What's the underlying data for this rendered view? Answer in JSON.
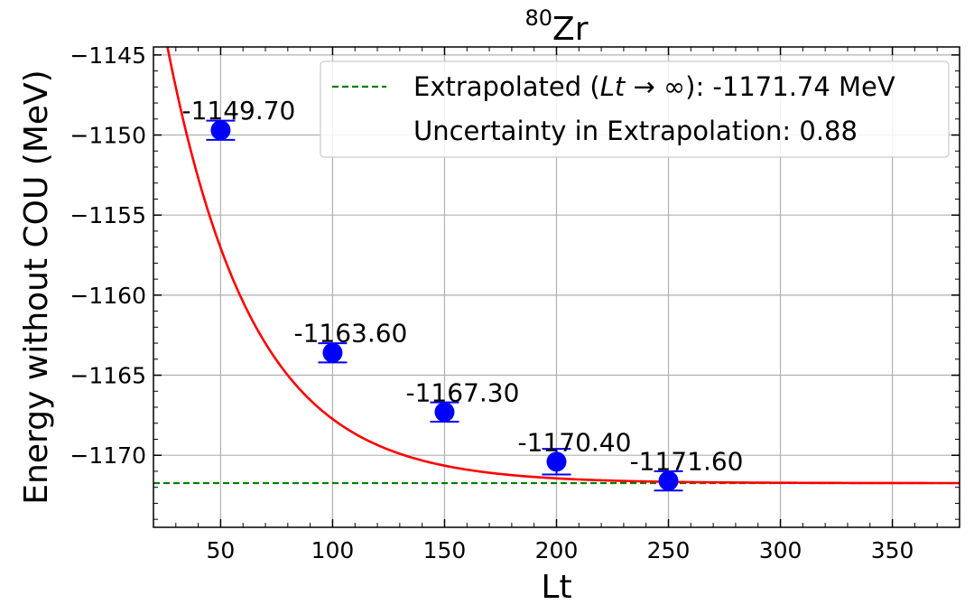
{
  "chart_data": {
    "type": "scatter",
    "title_base": "Zr",
    "title_superscript": "80",
    "xlabel": "Lt",
    "ylabel": "Energy without COU (MeV)",
    "xlim": [
      20,
      380
    ],
    "ylim": [
      -1174.5,
      -1144.5
    ],
    "xticks": [
      50,
      100,
      150,
      200,
      250,
      300,
      350
    ],
    "yticks": [
      -1145,
      -1150,
      -1155,
      -1160,
      -1165,
      -1170
    ],
    "xtick_labels": [
      "50",
      "100",
      "150",
      "200",
      "250",
      "300",
      "350"
    ],
    "ytick_labels": [
      "−1145",
      "−1150",
      "−1155",
      "−1160",
      "−1165",
      "−1170"
    ],
    "grid": true,
    "points": [
      {
        "x": 50,
        "y": -1149.7,
        "err": 0.6,
        "label": "-1149.70"
      },
      {
        "x": 100,
        "y": -1163.6,
        "err": 0.6,
        "label": "-1163.60"
      },
      {
        "x": 150,
        "y": -1167.3,
        "err": 0.6,
        "label": "-1167.30"
      },
      {
        "x": 200,
        "y": -1170.4,
        "err": 0.8,
        "label": "-1170.40"
      },
      {
        "x": 250,
        "y": -1171.6,
        "err": 0.6,
        "label": "-1171.60"
      }
    ],
    "fit": {
      "asymptote": -1171.74,
      "amplitude": 53.9,
      "decay": 0.026
    },
    "extrapolated_value": -1171.74,
    "legend": {
      "placement": "top-right",
      "line1_prefix": "Extrapolated (",
      "line1_italic": "Lt",
      "line1_arrow": " → ∞",
      "line1_suffix": "): -1171.74 MeV",
      "line2": "Uncertainty in Extrapolation: 0.88"
    },
    "colors": {
      "points": "#0000ff",
      "fit": "#ff0000",
      "extrapolation": "#008000",
      "grid": "#b0b0b0"
    }
  }
}
